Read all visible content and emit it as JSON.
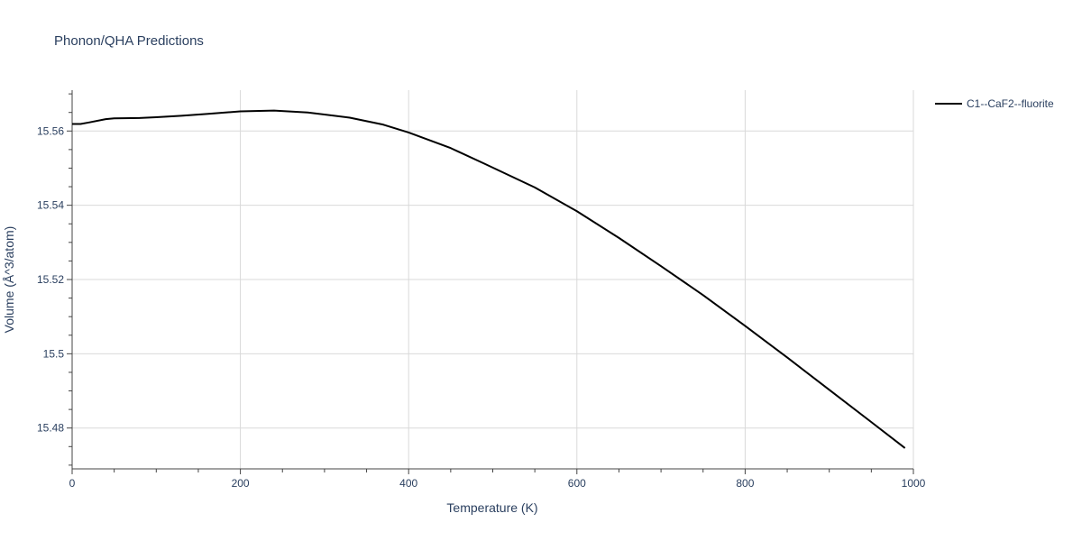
{
  "chart_data": {
    "type": "line",
    "title": "Phonon/QHA Predictions",
    "xlabel": "Temperature (K)",
    "ylabel": "Volume (Å^3/atom)",
    "xlim": [
      0,
      1000
    ],
    "ylim": [
      15.469,
      15.571
    ],
    "xticks": [
      0,
      200,
      400,
      600,
      800,
      1000
    ],
    "xtick_labels": [
      "0",
      "200",
      "400",
      "600",
      "800",
      "1000"
    ],
    "yticks": [
      15.48,
      15.5,
      15.52,
      15.54,
      15.56
    ],
    "ytick_labels": [
      "15.48",
      "15.5",
      "15.52",
      "15.54",
      "15.56"
    ],
    "grid": true,
    "legend_position": "top-right",
    "series": [
      {
        "name": "C1--CaF2--fluorite",
        "color": "#000000",
        "x": [
          0,
          10,
          20,
          40,
          50,
          80,
          100,
          130,
          160,
          200,
          240,
          280,
          330,
          370,
          400,
          450,
          490,
          550,
          600,
          650,
          700,
          750,
          800,
          850,
          900,
          950,
          990
        ],
        "y": [
          15.5619,
          15.5619,
          15.5623,
          15.5632,
          15.5634,
          15.5635,
          15.5637,
          15.5641,
          15.5646,
          15.5653,
          15.5655,
          15.565,
          15.5636,
          15.5617,
          15.5596,
          15.5554,
          15.5512,
          15.5448,
          15.5384,
          15.5312,
          15.5236,
          15.5158,
          15.5075,
          15.499,
          15.4903,
          15.4816,
          15.4746
        ]
      }
    ]
  }
}
